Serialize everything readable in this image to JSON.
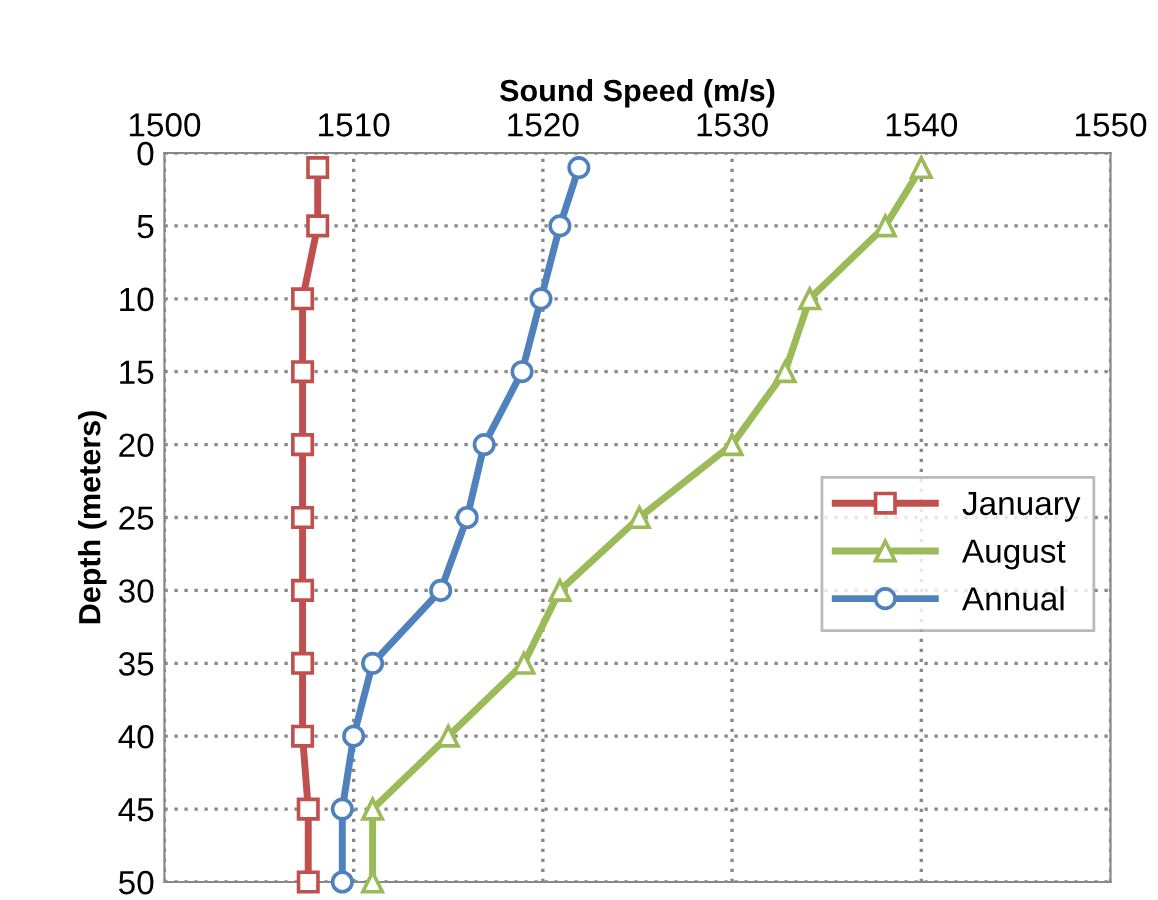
{
  "chart_data": {
    "type": "line",
    "xlabel": "Sound Speed (m/s)",
    "ylabel": "Depth (meters)",
    "xlim": [
      1500,
      1550
    ],
    "xticks": [
      1500,
      1510,
      1520,
      1530,
      1540,
      1550
    ],
    "ylim": [
      50,
      0
    ],
    "yticks": [
      0,
      5,
      10,
      15,
      20,
      25,
      30,
      35,
      40,
      45,
      50
    ],
    "grid": true,
    "legend": "right",
    "series": [
      {
        "name": "January",
        "color": "#c0504d",
        "marker": "square",
        "x": [
          1508.1,
          1508.1,
          1507.3,
          1507.3,
          1507.3,
          1507.3,
          1507.3,
          1507.3,
          1507.3,
          1507.6,
          1507.6
        ],
        "values": [
          1,
          5,
          10,
          15,
          20,
          25,
          30,
          35,
          40,
          45,
          50
        ]
      },
      {
        "name": "August",
        "color": "#9bbb59",
        "marker": "triangle",
        "x": [
          1540.0,
          1538.1,
          1534.1,
          1532.8,
          1530.0,
          1525.1,
          1520.9,
          1519.0,
          1515.0,
          1511.0,
          1511.0
        ],
        "values": [
          1,
          5,
          10,
          15,
          20,
          25,
          30,
          35,
          40,
          45,
          50
        ]
      },
      {
        "name": "Annual",
        "color": "#4f81bd",
        "marker": "circle",
        "x": [
          1521.9,
          1520.9,
          1519.9,
          1518.9,
          1516.9,
          1516.0,
          1514.6,
          1511.0,
          1510.0,
          1509.4,
          1509.4
        ],
        "values": [
          1,
          5,
          10,
          15,
          20,
          25,
          30,
          35,
          40,
          45,
          50
        ]
      }
    ]
  }
}
